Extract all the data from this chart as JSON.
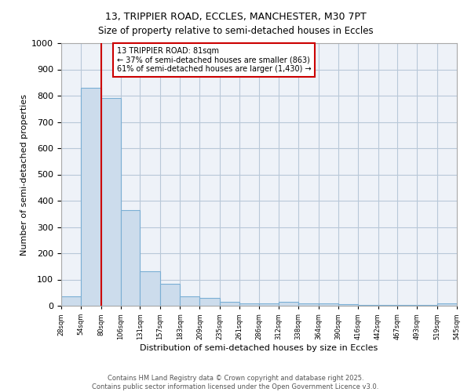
{
  "title_line1": "13, TRIPPIER ROAD, ECCLES, MANCHESTER, M30 7PT",
  "title_line2": "Size of property relative to semi-detached houses in Eccles",
  "xlabel": "Distribution of semi-detached houses by size in Eccles",
  "ylabel": "Number of semi-detached properties",
  "footer_line1": "Contains HM Land Registry data © Crown copyright and database right 2025.",
  "footer_line2": "Contains public sector information licensed under the Open Government Licence v3.0.",
  "bar_color": "#ccdcec",
  "bar_edge_color": "#7bafd4",
  "grid_color": "#b8c8d8",
  "bg_color": "#eef2f8",
  "annotation_box_color": "#cc0000",
  "annotation_text_line1": "13 TRIPPIER ROAD: 81sqm",
  "annotation_text_line2": "← 37% of semi-detached houses are smaller (863)",
  "annotation_text_line3": "61% of semi-detached houses are larger (1,430) →",
  "red_line_x": 80,
  "bin_edges": [
    28,
    54,
    80,
    106,
    131,
    157,
    183,
    209,
    235,
    261,
    286,
    312,
    338,
    364,
    390,
    416,
    442,
    467,
    493,
    519,
    545
  ],
  "bar_heights": [
    35,
    830,
    790,
    365,
    130,
    85,
    35,
    30,
    15,
    10,
    10,
    15,
    10,
    8,
    5,
    3,
    2,
    2,
    2,
    8
  ],
  "ylim": [
    0,
    1000
  ],
  "yticks": [
    0,
    100,
    200,
    300,
    400,
    500,
    600,
    700,
    800,
    900,
    1000
  ]
}
